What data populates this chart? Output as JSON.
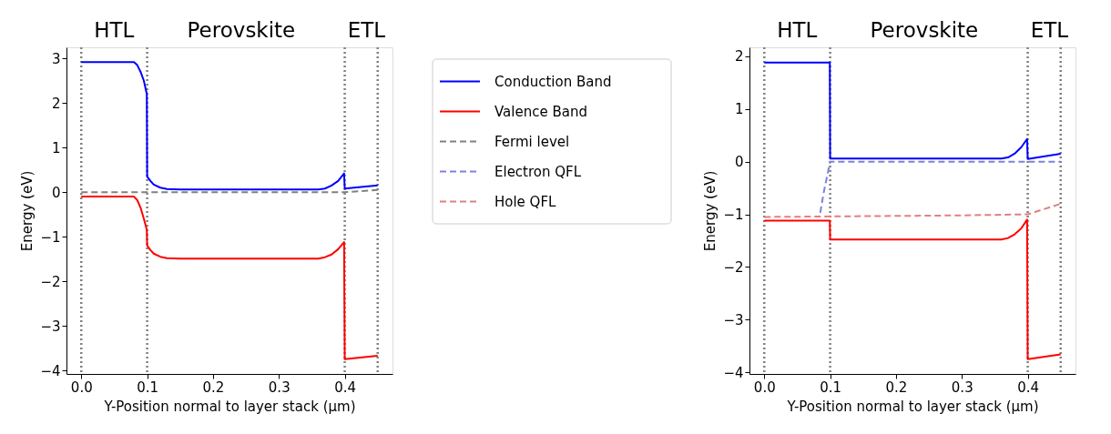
{
  "chart_data": [
    {
      "type": "line",
      "xlabel": "Y-Position normal to layer stack (µm)",
      "ylabel": "Energy (eV)",
      "xlim": [
        -0.0225,
        0.4725
      ],
      "xticks": [
        {
          "value": 0,
          "label": "0.0"
        },
        0.1,
        0.2,
        0.3,
        0.4
      ],
      "ylim": [
        -4.08,
        3.25
      ],
      "yticks": [
        -4,
        -3,
        -2,
        -1,
        0,
        1,
        2,
        3
      ],
      "legend": "right",
      "annotations": [
        "HTL",
        "Perovskite",
        "ETL"
      ],
      "ref_lines": [
        {
          "axis": "x",
          "value": 0,
          "color": "#808080",
          "line_style": "dotted"
        },
        {
          "axis": "x",
          "value": 0.1,
          "color": "#808080",
          "line_style": "dotted"
        },
        {
          "axis": "x",
          "value": 0.4,
          "color": "#808080",
          "line_style": "dotted"
        },
        {
          "axis": "x",
          "value": 0.45,
          "color": "#808080",
          "line_style": "dotted"
        }
      ],
      "series": [
        {
          "name": "Conduction Band",
          "color": "#0000ff",
          "line_style": "solid",
          "x": [
            0,
            0.08,
            0.085,
            0.09,
            0.095,
            0.0995,
            0.1,
            0.105,
            0.11,
            0.12,
            0.13,
            0.15,
            0.36,
            0.37,
            0.38,
            0.39,
            0.399,
            0.4,
            0.45
          ],
          "values": [
            2.92,
            2.92,
            2.85,
            2.7,
            2.5,
            2.2,
            0.35,
            0.25,
            0.17,
            0.1,
            0.07,
            0.06,
            0.06,
            0.08,
            0.15,
            0.25,
            0.42,
            0.08,
            0.15
          ]
        },
        {
          "name": "Valence Band",
          "color": "#ff0000",
          "line_style": "solid",
          "x": [
            0,
            0.08,
            0.085,
            0.09,
            0.095,
            0.0995,
            0.1,
            0.105,
            0.11,
            0.12,
            0.13,
            0.15,
            0.36,
            0.37,
            0.38,
            0.39,
            0.399,
            0.4,
            0.45
          ],
          "values": [
            -0.1,
            -0.1,
            -0.18,
            -0.35,
            -0.6,
            -0.85,
            -1.2,
            -1.3,
            -1.38,
            -1.45,
            -1.48,
            -1.49,
            -1.49,
            -1.46,
            -1.4,
            -1.28,
            -1.12,
            -3.75,
            -3.67
          ]
        },
        {
          "name": "Fermi level",
          "color": "#808080",
          "line_style": "dashed",
          "x": [
            0,
            0.4,
            0.45
          ],
          "values": [
            0,
            0,
            0.05
          ]
        }
      ]
    },
    {
      "type": "line",
      "xlabel": "Y-Position normal to layer stack (µm)",
      "ylabel": "Energy (eV)",
      "xlim": [
        -0.0225,
        0.4725
      ],
      "xticks": [
        {
          "value": 0,
          "label": "0.0"
        },
        0.1,
        0.2,
        0.3,
        0.4
      ],
      "ylim": [
        -4.03,
        2.17
      ],
      "yticks": [
        -4,
        -3,
        -2,
        -1,
        0,
        1,
        2
      ],
      "legend": "left",
      "annotations": [
        "HTL",
        "Perovskite",
        "ETL"
      ],
      "ref_lines": [
        {
          "axis": "x",
          "value": 0,
          "color": "#808080",
          "line_style": "dotted"
        },
        {
          "axis": "x",
          "value": 0.1,
          "color": "#808080",
          "line_style": "dotted"
        },
        {
          "axis": "x",
          "value": 0.4,
          "color": "#808080",
          "line_style": "dotted"
        },
        {
          "axis": "x",
          "value": 0.45,
          "color": "#808080",
          "line_style": "dotted"
        }
      ],
      "series": [
        {
          "name": "Conduction Band",
          "color": "#0000ff",
          "line_style": "solid",
          "x": [
            0,
            0.0995,
            0.1,
            0.36,
            0.37,
            0.38,
            0.39,
            0.399,
            0.4,
            0.45
          ],
          "values": [
            1.88,
            1.88,
            0.06,
            0.06,
            0.08,
            0.15,
            0.27,
            0.43,
            0.05,
            0.15
          ]
        },
        {
          "name": "Electron QFL",
          "color": "#8080e0",
          "line_style": "dashed",
          "x": [
            0.085,
            0.09,
            0.095,
            0.1,
            0.45
          ],
          "values": [
            -0.97,
            -0.6,
            -0.3,
            0,
            0
          ]
        },
        {
          "name": "Hole QFL",
          "color": "#e08080",
          "line_style": "dashed",
          "x": [
            0,
            0.1,
            0.2,
            0.3,
            0.4,
            0.45
          ],
          "values": [
            -1.05,
            -1.04,
            -1.03,
            -1.02,
            -1.0,
            -0.8
          ]
        },
        {
          "name": "Valence Band",
          "color": "#ff0000",
          "line_style": "solid",
          "x": [
            0,
            0.0995,
            0.1,
            0.36,
            0.37,
            0.38,
            0.39,
            0.399,
            0.4,
            0.45
          ],
          "values": [
            -1.12,
            -1.12,
            -1.48,
            -1.48,
            -1.45,
            -1.38,
            -1.27,
            -1.1,
            -3.75,
            -3.66
          ]
        }
      ]
    }
  ]
}
